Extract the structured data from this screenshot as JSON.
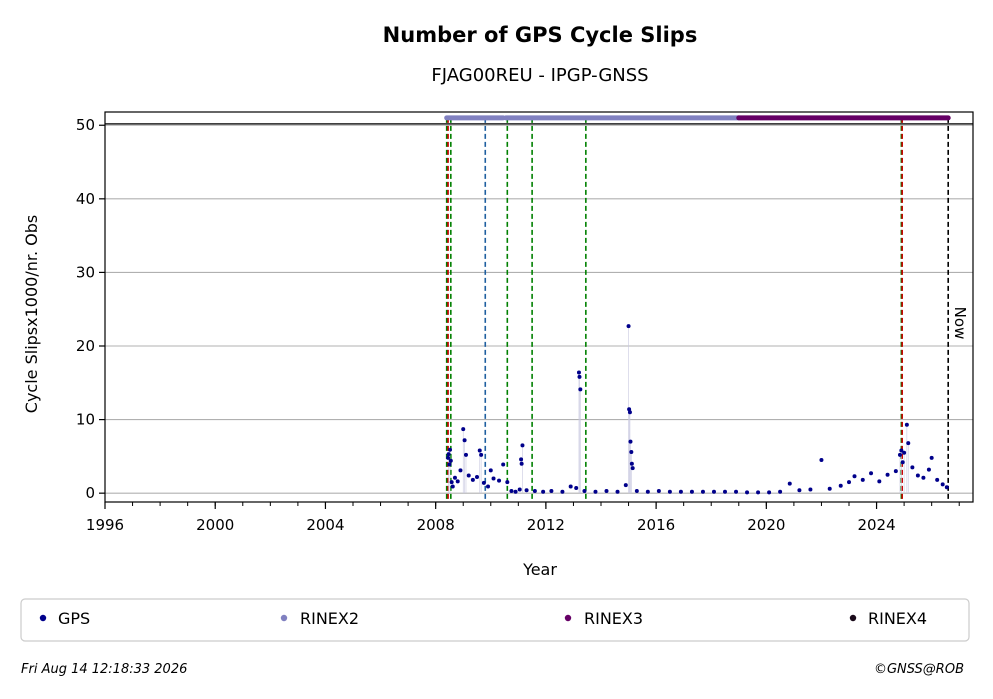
{
  "chart_data": {
    "type": "scatter",
    "title": "Number of GPS Cycle Slips",
    "subtitle": "FJAG00REU - IPGP-GNSS",
    "xlabel": "Year",
    "ylabel": "Cycle Slipsx1000/nr. Obs",
    "xlim": [
      1996,
      2027.5
    ],
    "ylim": [
      -1.2,
      51.8
    ],
    "x_ticks": [
      1996,
      2000,
      2004,
      2008,
      2012,
      2016,
      2020,
      2024
    ],
    "x_tick_labels": [
      "1996",
      "2000",
      "2004",
      "2008",
      "2012",
      "2016",
      "2020",
      "2024"
    ],
    "y_ticks": [
      0,
      10,
      20,
      30,
      40,
      50
    ],
    "y_tick_labels": [
      "0",
      "10",
      "20",
      "30",
      "40",
      "50"
    ],
    "grid": "y-major",
    "now_label": "Now",
    "now_x": 2026.6,
    "reference_line_y": 51,
    "series": [
      {
        "name": "GPS",
        "color": "#00008b",
        "points": [
          [
            2008.45,
            4.8
          ],
          [
            2008.47,
            5.3
          ],
          [
            2008.5,
            3.9
          ],
          [
            2008.52,
            5.9
          ],
          [
            2008.55,
            4.4
          ],
          [
            2008.58,
            1.5
          ],
          [
            2008.62,
            0.9
          ],
          [
            2008.7,
            2.1
          ],
          [
            2008.8,
            1.6
          ],
          [
            2008.9,
            3.1
          ],
          [
            2009.0,
            8.7
          ],
          [
            2009.05,
            7.2
          ],
          [
            2009.1,
            5.2
          ],
          [
            2009.2,
            2.4
          ],
          [
            2009.35,
            1.8
          ],
          [
            2009.5,
            2.2
          ],
          [
            2009.6,
            5.8
          ],
          [
            2009.65,
            5.2
          ],
          [
            2009.75,
            1.4
          ],
          [
            2009.9,
            0.9
          ],
          [
            2010.0,
            3.1
          ],
          [
            2010.1,
            2.0
          ],
          [
            2010.3,
            1.7
          ],
          [
            2010.45,
            3.9
          ],
          [
            2010.6,
            1.5
          ],
          [
            2010.75,
            0.3
          ],
          [
            2010.9,
            0.2
          ],
          [
            2011.05,
            0.5
          ],
          [
            2011.1,
            4.6
          ],
          [
            2011.12,
            4.0
          ],
          [
            2011.15,
            6.5
          ],
          [
            2011.3,
            0.4
          ],
          [
            2011.6,
            0.3
          ],
          [
            2011.9,
            0.2
          ],
          [
            2012.2,
            0.3
          ],
          [
            2012.6,
            0.2
          ],
          [
            2012.9,
            0.9
          ],
          [
            2013.1,
            0.7
          ],
          [
            2013.2,
            16.4
          ],
          [
            2013.22,
            15.8
          ],
          [
            2013.25,
            14.1
          ],
          [
            2013.4,
            0.3
          ],
          [
            2013.8,
            0.2
          ],
          [
            2014.2,
            0.3
          ],
          [
            2014.6,
            0.2
          ],
          [
            2014.9,
            1.1
          ],
          [
            2015.0,
            22.7
          ],
          [
            2015.02,
            11.4
          ],
          [
            2015.05,
            11.0
          ],
          [
            2015.07,
            7.0
          ],
          [
            2015.1,
            5.6
          ],
          [
            2015.12,
            4.0
          ],
          [
            2015.15,
            3.4
          ],
          [
            2015.3,
            0.3
          ],
          [
            2015.7,
            0.2
          ],
          [
            2016.1,
            0.3
          ],
          [
            2016.5,
            0.2
          ],
          [
            2016.9,
            0.2
          ],
          [
            2017.3,
            0.2
          ],
          [
            2017.7,
            0.2
          ],
          [
            2018.1,
            0.2
          ],
          [
            2018.5,
            0.2
          ],
          [
            2018.9,
            0.2
          ],
          [
            2019.3,
            0.1
          ],
          [
            2019.7,
            0.1
          ],
          [
            2020.1,
            0.1
          ],
          [
            2020.5,
            0.2
          ],
          [
            2020.85,
            1.3
          ],
          [
            2021.2,
            0.4
          ],
          [
            2021.6,
            0.5
          ],
          [
            2022.0,
            4.5
          ],
          [
            2022.3,
            0.6
          ],
          [
            2022.7,
            1.0
          ],
          [
            2023.0,
            1.5
          ],
          [
            2023.2,
            2.3
          ],
          [
            2023.5,
            1.8
          ],
          [
            2023.8,
            2.7
          ],
          [
            2024.1,
            1.6
          ],
          [
            2024.4,
            2.5
          ],
          [
            2024.7,
            3.0
          ],
          [
            2024.85,
            5.2
          ],
          [
            2024.9,
            5.8
          ],
          [
            2024.95,
            4.2
          ],
          [
            2025.0,
            5.5
          ],
          [
            2025.1,
            9.3
          ],
          [
            2025.15,
            6.8
          ],
          [
            2025.3,
            3.5
          ],
          [
            2025.5,
            2.4
          ],
          [
            2025.7,
            2.1
          ],
          [
            2025.9,
            3.2
          ],
          [
            2026.0,
            4.8
          ],
          [
            2026.2,
            1.8
          ],
          [
            2026.4,
            1.2
          ],
          [
            2026.55,
            0.8
          ]
        ]
      },
      {
        "name": "RINEX2",
        "color": "#8080c0",
        "intervals": [
          [
            2008.4,
            2010.45
          ],
          [
            2010.55,
            2019.0
          ]
        ],
        "y": 51
      },
      {
        "name": "RINEX3",
        "color": "#660066",
        "intervals": [
          [
            2019.0,
            2026.6
          ]
        ],
        "y": 51
      },
      {
        "name": "RINEX4",
        "color": "#1a0a1a",
        "intervals": [],
        "y": 51
      }
    ],
    "event_lines": [
      {
        "x": 2008.4,
        "color": "#008000"
      },
      {
        "x": 2008.45,
        "color": "#cc0000"
      },
      {
        "x": 2008.55,
        "color": "#008000"
      },
      {
        "x": 2009.8,
        "color": "#1f5fa0"
      },
      {
        "x": 2010.6,
        "color": "#008000"
      },
      {
        "x": 2011.5,
        "color": "#008000"
      },
      {
        "x": 2013.45,
        "color": "#008000"
      },
      {
        "x": 2024.9,
        "color": "#008000"
      },
      {
        "x": 2024.93,
        "color": "#cc0000"
      }
    ],
    "legend": {
      "position": "bottom",
      "entries": [
        {
          "label": "GPS",
          "color": "#00008b"
        },
        {
          "label": "RINEX2",
          "color": "#8080c0"
        },
        {
          "label": "RINEX3",
          "color": "#660066"
        },
        {
          "label": "RINEX4",
          "color": "#1a0a1a"
        }
      ]
    }
  },
  "footer": {
    "timestamp": "Fri Aug 14 12:18:33 2026",
    "credit": "©GNSS@ROB"
  }
}
